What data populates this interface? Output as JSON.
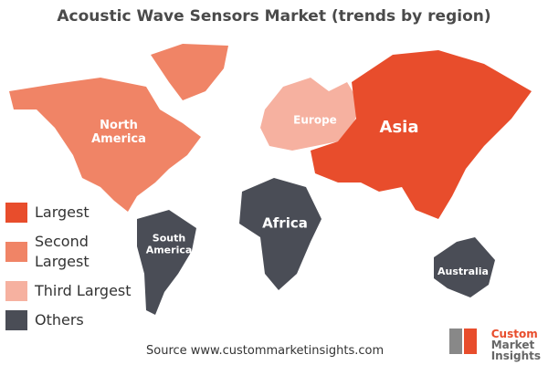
{
  "title": "Acoustic Wave Sensors Market (trends by region)",
  "legend": [
    {
      "label": "Largest",
      "color": "#e84d2c"
    },
    {
      "label": "Second Largest",
      "color": "#f08466"
    },
    {
      "label": "Third Largest",
      "color": "#f6b1a0"
    },
    {
      "label": "Others",
      "color": "#4a4d56"
    }
  ],
  "regions": [
    {
      "label": [
        "North",
        "America"
      ],
      "color": "#f08466"
    },
    {
      "label": [
        "Europe"
      ],
      "color": "#f6b1a0"
    },
    {
      "label": [
        "Asia"
      ],
      "color": "#e84d2c"
    },
    {
      "label": [
        "South",
        "America"
      ],
      "color": "#4a4d56"
    },
    {
      "label": [
        "Africa"
      ],
      "color": "#4a4d56"
    },
    {
      "label": [
        "Australia"
      ],
      "color": "#4a4d56"
    }
  ],
  "source": "Source www.custommarketinsights.com",
  "logo": [
    "Custom",
    "Market",
    "Insights"
  ]
}
